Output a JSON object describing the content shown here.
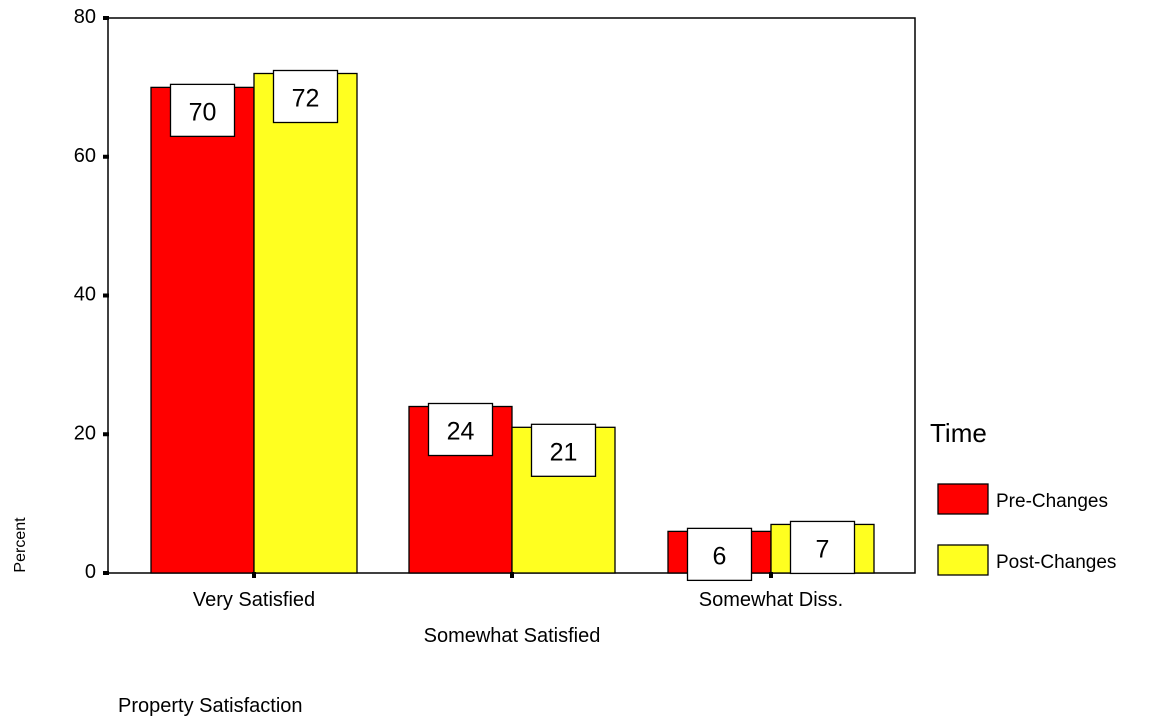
{
  "chart_data": {
    "type": "bar",
    "xlabel": "Property Satisfaction",
    "ylabel": "Percent",
    "ylim": [
      0,
      80
    ],
    "yticks": [
      0,
      20,
      40,
      60,
      80
    ],
    "grid": false,
    "categories": [
      "Very Satisfied",
      "Somewhat Satisfied",
      "Somewhat Diss."
    ],
    "series": [
      {
        "name": "Pre-Changes",
        "values": [
          70,
          24,
          6
        ],
        "color": "#ff0000"
      },
      {
        "name": "Post-Changes",
        "values": [
          72,
          21,
          7
        ],
        "color": "#ffff20"
      }
    ],
    "data_labels": [
      [
        "70",
        "24",
        "6"
      ],
      [
        "72",
        "21",
        "7"
      ]
    ],
    "legend": {
      "title": "Time",
      "placement": "right"
    }
  }
}
